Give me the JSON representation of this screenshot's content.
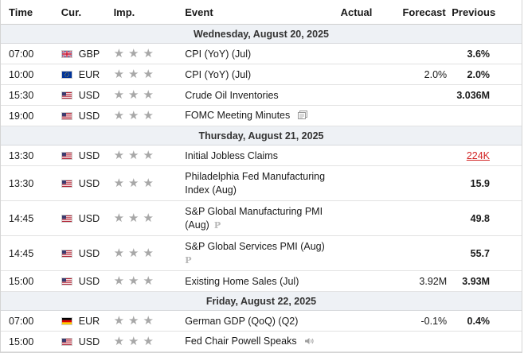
{
  "header": {
    "time": "Time",
    "cur": "Cur.",
    "imp": "Imp.",
    "event": "Event",
    "actual": "Actual",
    "forecast": "Forecast",
    "previous": "Previous"
  },
  "days": [
    {
      "label": "Wednesday, August 20, 2025"
    },
    {
      "label": "Thursday, August 21, 2025"
    },
    {
      "label": "Friday, August 22, 2025"
    }
  ],
  "events": [
    {
      "time": "07:00",
      "currency": "GBP",
      "flag": "uk-flag",
      "importance": 3,
      "event": "CPI (YoY) (Jul)",
      "actual": "",
      "forecast": "",
      "previous": "3.6%",
      "icon": ""
    },
    {
      "time": "10:00",
      "currency": "EUR",
      "flag": "eu-flag",
      "importance": 3,
      "event": "CPI (YoY) (Jul)",
      "actual": "",
      "forecast": "2.0%",
      "previous": "2.0%",
      "icon": ""
    },
    {
      "time": "15:30",
      "currency": "USD",
      "flag": "us-flag",
      "importance": 3,
      "event": "Crude Oil Inventories",
      "actual": "",
      "forecast": "",
      "previous": "3.036M",
      "icon": ""
    },
    {
      "time": "19:00",
      "currency": "USD",
      "flag": "us-flag",
      "importance": 3,
      "event": "FOMC Meeting Minutes",
      "actual": "",
      "forecast": "",
      "previous": "",
      "icon": "document-icon"
    },
    {
      "time": "13:30",
      "currency": "USD",
      "flag": "us-flag",
      "importance": 3,
      "event": "Initial Jobless Claims",
      "actual": "",
      "forecast": "",
      "previous": "224K",
      "previous_color": "#d22323",
      "icon": ""
    },
    {
      "time": "13:30",
      "currency": "USD",
      "flag": "us-flag",
      "importance": 3,
      "event_line1": "Philadelphia Fed Manufacturing",
      "event_line2": "Index (Aug)",
      "actual": "",
      "forecast": "",
      "previous": "15.9",
      "icon": ""
    },
    {
      "time": "14:45",
      "currency": "USD",
      "flag": "us-flag",
      "importance": 3,
      "event_line1": "S&P Global Manufacturing PMI",
      "event_line2": "(Aug)",
      "actual": "",
      "forecast": "",
      "previous": "49.8",
      "icon": "preliminary-icon",
      "prelim": "P"
    },
    {
      "time": "14:45",
      "currency": "USD",
      "flag": "us-flag",
      "importance": 3,
      "event_line1": "S&P Global Services PMI (Aug)",
      "actual": "",
      "forecast": "",
      "previous": "55.7",
      "icon": "preliminary-icon",
      "prelim": "P"
    },
    {
      "time": "15:00",
      "currency": "USD",
      "flag": "us-flag",
      "importance": 3,
      "event": "Existing Home Sales (Jul)",
      "actual": "",
      "forecast": "3.92M",
      "previous": "3.93M",
      "icon": ""
    },
    {
      "time": "07:00",
      "currency": "EUR",
      "flag": "de-flag",
      "importance": 3,
      "event": "German GDP (QoQ) (Q2)",
      "actual": "",
      "forecast": "-0.1%",
      "previous": "0.4%",
      "icon": ""
    },
    {
      "time": "15:00",
      "currency": "USD",
      "flag": "us-flag",
      "importance": 3,
      "event": "Fed Chair Powell Speaks",
      "actual": "",
      "forecast": "",
      "previous": "",
      "icon": "speaker-icon"
    }
  ],
  "colors": {
    "day_bg": "#eef1f5",
    "star": "#a8a8a8",
    "negative": "#d22323"
  }
}
